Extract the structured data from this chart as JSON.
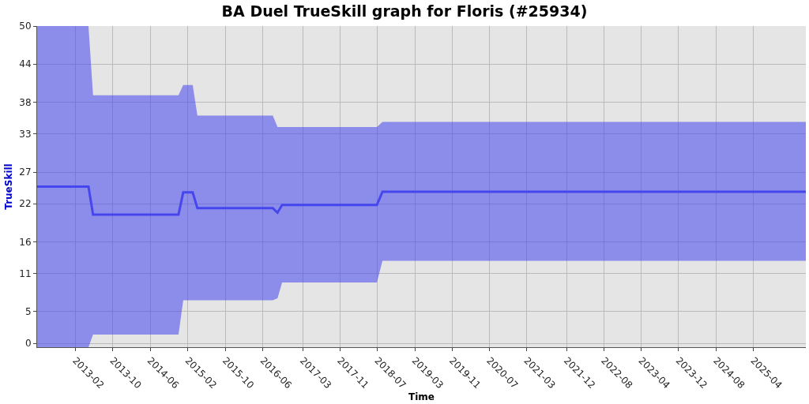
{
  "chart_data": {
    "type": "line",
    "title": "BA Duel TrueSkill graph for Floris (#25934)",
    "xlabel": "Time",
    "ylabel": "TrueSkill",
    "x": [
      "2012-05-26",
      "2013-04-28",
      "2013-05-28",
      "2014-12-10",
      "2015-01-10",
      "2015-03-13",
      "2015-04-13",
      "2016-08-20",
      "2016-09-20",
      "2016-10-20",
      "2018-07-04",
      "2018-08-10",
      "2026-03-20"
    ],
    "series": [
      {
        "color": "#4646ee",
        "values": [
          24.7,
          24.7,
          20.3,
          20.3,
          23.8,
          23.8,
          21.3,
          21.3,
          20.6,
          21.8,
          21.8,
          23.9,
          23.9
        ],
        "lower": [
          -0.6,
          -0.6,
          1.4,
          1.4,
          6.8,
          6.8,
          6.8,
          6.8,
          7.1,
          9.6,
          9.6,
          13.0,
          13.0
        ],
        "upper": [
          50,
          50,
          39.1,
          39.1,
          40.7,
          40.7,
          35.9,
          35.9,
          34.1,
          34.1,
          34.1,
          34.9,
          34.9
        ]
      }
    ],
    "xlim": [
      "2012-05-26",
      "2026-03-20"
    ],
    "xticks": [
      {
        "value": "2013-02-01",
        "label": "2013-02"
      },
      {
        "value": "2013-10-04",
        "label": "2013-10"
      },
      {
        "value": "2014-06-07",
        "label": "2014-06"
      },
      {
        "value": "2015-02-10",
        "label": "2015-02"
      },
      {
        "value": "2015-10-13",
        "label": "2015-10"
      },
      {
        "value": "2016-06-17",
        "label": "2016-06"
      },
      {
        "value": "2017-03-05",
        "label": "2017-03"
      },
      {
        "value": "2017-11-05",
        "label": "2017-11"
      },
      {
        "value": "2018-07-08",
        "label": "2018-07"
      },
      {
        "value": "2019-03-10",
        "label": "2019-03"
      },
      {
        "value": "2019-11-10",
        "label": "2019-11"
      },
      {
        "value": "2020-07-12",
        "label": "2020-07"
      },
      {
        "value": "2021-03-14",
        "label": "2021-03"
      },
      {
        "value": "2021-12-01",
        "label": "2021-12"
      },
      {
        "value": "2022-08-03",
        "label": "2022-08"
      },
      {
        "value": "2023-04-05",
        "label": "2023-04"
      },
      {
        "value": "2023-12-06",
        "label": "2023-12"
      },
      {
        "value": "2024-08-08",
        "label": "2024-08"
      },
      {
        "value": "2025-04-10",
        "label": "2025-04"
      }
    ],
    "ylim": [
      -0.6,
      50
    ],
    "yticks": [
      0,
      5,
      11,
      16,
      22,
      27,
      33,
      38,
      44,
      50
    ],
    "grid": true
  }
}
